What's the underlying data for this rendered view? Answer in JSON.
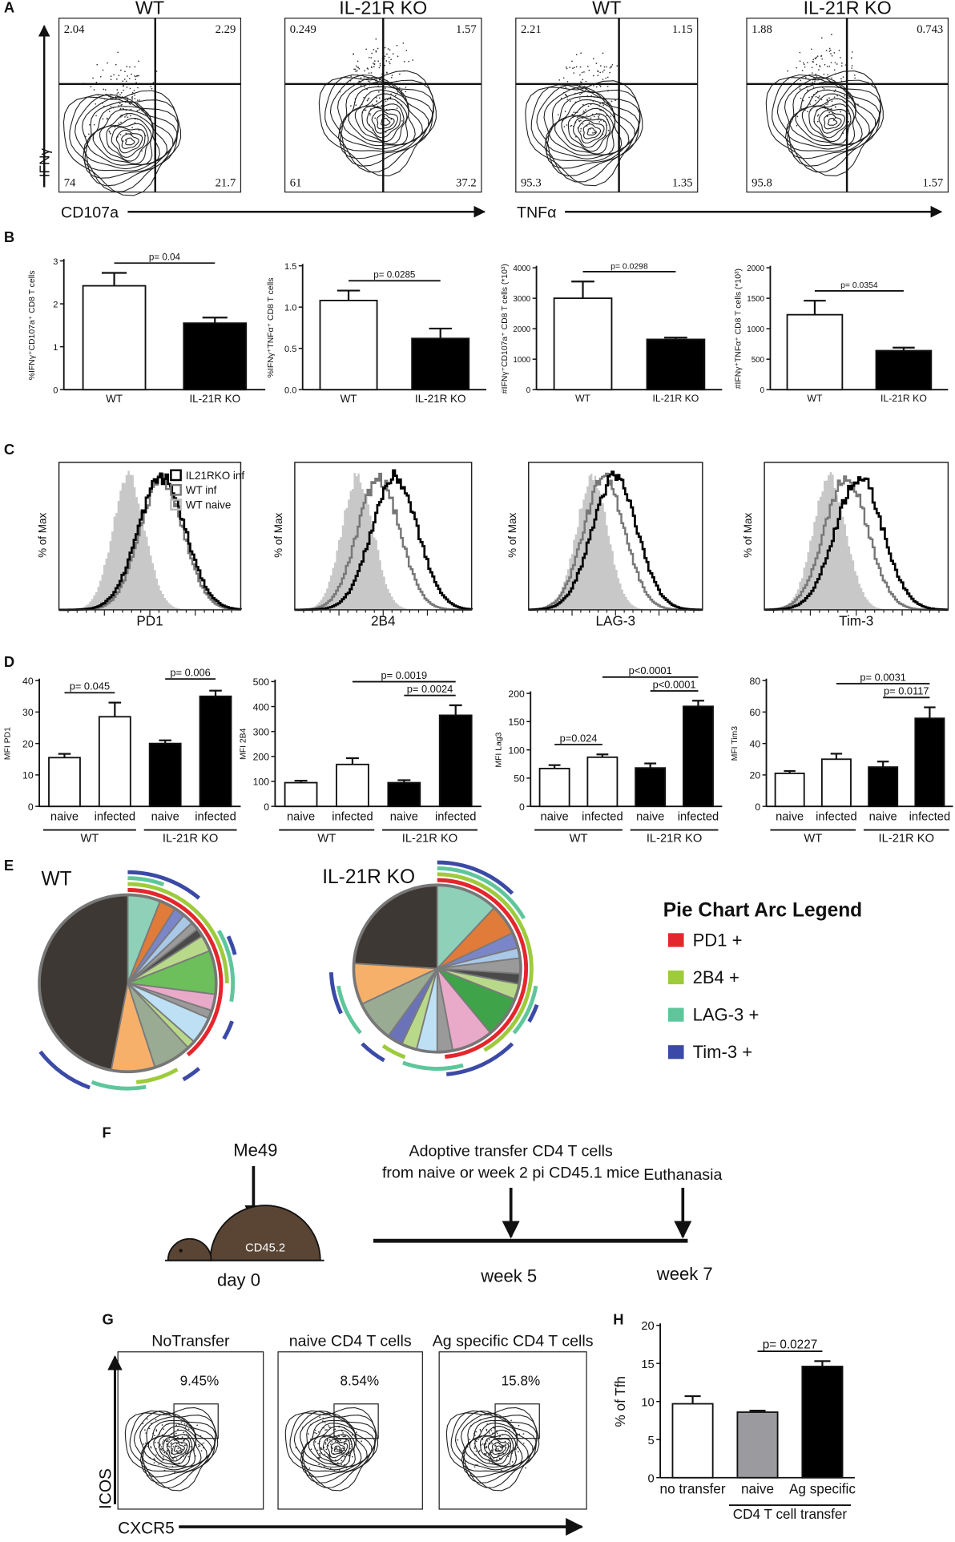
{
  "panel_labels": [
    "A",
    "B",
    "C",
    "D",
    "E",
    "F",
    "G",
    "H"
  ],
  "panel_a": {
    "y_label": "IFNγ",
    "x_labels": [
      "CD107a",
      "TNFα"
    ],
    "plots": [
      {
        "title": "WT",
        "quadrants": [
          2.04,
          2.29,
          74,
          21.7
        ]
      },
      {
        "title": "IL-21R KO",
        "quadrants": [
          0.249,
          1.57,
          61,
          37.2
        ]
      },
      {
        "title": "WT",
        "quadrants": [
          2.21,
          1.15,
          95.3,
          1.35
        ]
      },
      {
        "title": "IL-21R KO",
        "quadrants": [
          1.88,
          0.743,
          95.8,
          1.57
        ]
      }
    ]
  },
  "panel_c": {
    "y_label": "% of Max",
    "legend": [
      "IL21RKO inf",
      "WT inf",
      "WT naive"
    ],
    "x_labels": [
      "PD1",
      "2B4",
      "LAG-3",
      "Tim-3"
    ]
  },
  "panel_e": {
    "legend_title": "Pie Chart Arc Legend",
    "legend": [
      {
        "label": "PD1 +",
        "color": "#e5262d"
      },
      {
        "label": "2B4 +",
        "color": "#9dcb3c"
      },
      {
        "label": "LAG-3 +",
        "color": "#5fc69b"
      },
      {
        "label": "Tim-3 +",
        "color": "#3b4aa6"
      }
    ]
  },
  "panel_f": {
    "strain": "Me49",
    "mouse": "CD45.2",
    "day": "day 0",
    "transfer": [
      "Adoptive transfer CD4 T cells",
      "from naive or week 2 pi CD45.1 mice"
    ],
    "end": "Euthanasia",
    "weeks": [
      "week 5",
      "week 7"
    ]
  },
  "panel_g": {
    "y_label": "ICOS",
    "x_label": "CXCR5",
    "plots": [
      {
        "title": "NoTransfer",
        "percent": "9.45%"
      },
      {
        "title": "naive CD4 T cells",
        "percent": "8.54%"
      },
      {
        "title": "Ag specific CD4 T cells",
        "percent": "15.8%"
      }
    ]
  },
  "chart_data": [
    {
      "type": "bar",
      "y_label": "%IFNγ⁺CD107a⁺ CD8 T cells",
      "categories": [
        "WT",
        "IL-21R KO"
      ],
      "values": [
        2.42,
        1.55
      ],
      "errors": [
        0.3,
        0.13
      ],
      "colors": [
        "#ffffff",
        "#000000"
      ],
      "ylim": [
        0,
        3
      ],
      "yticks": [
        0,
        1,
        2,
        3
      ],
      "comparisons": [
        {
          "label": "p= 0.04",
          "between": [
            0,
            1
          ]
        }
      ]
    },
    {
      "type": "bar",
      "y_label": "%IFNγ⁺TNFα⁺ CD8 T cells",
      "categories": [
        "WT",
        "IL-21R KO"
      ],
      "values": [
        1.08,
        0.62
      ],
      "errors": [
        0.12,
        0.12
      ],
      "colors": [
        "#ffffff",
        "#000000"
      ],
      "ylim": [
        0,
        1.5
      ],
      "yticks": [
        {
          "value": 0,
          "label": "0.0"
        },
        {
          "value": 0.5,
          "label": "0.5"
        },
        {
          "value": 1,
          "label": "1.0"
        },
        {
          "value": 1.5,
          "label": "1.5"
        }
      ],
      "comparisons": [
        {
          "label": "p= 0.0285",
          "between": [
            0,
            1
          ]
        }
      ]
    },
    {
      "type": "bar",
      "y_label": "#IFNγ⁺CD107a⁺ CD8 T cells (*10³)",
      "categories": [
        "WT",
        "IL-21R KO"
      ],
      "values": [
        3000,
        1650
      ],
      "errors": [
        550,
        60
      ],
      "colors": [
        "#ffffff",
        "#000000"
      ],
      "ylim": [
        0,
        4000
      ],
      "yticks": [
        0,
        1000,
        2000,
        3000,
        4000
      ],
      "comparisons": [
        {
          "label": "p= 0.0298",
          "between": [
            0,
            1
          ]
        }
      ]
    },
    {
      "type": "bar",
      "y_label": "#IFNγ⁺TNFα⁺ CD8 T cells (*10³)",
      "categories": [
        "WT",
        "IL-21R KO"
      ],
      "values": [
        1230,
        640
      ],
      "errors": [
        230,
        50
      ],
      "colors": [
        "#ffffff",
        "#000000"
      ],
      "ylim": [
        0,
        2000
      ],
      "yticks": [
        0,
        500,
        1000,
        1500,
        2000
      ],
      "comparisons": [
        {
          "label": "p= 0.0354",
          "between": [
            0,
            1
          ]
        }
      ]
    },
    {
      "type": "bar",
      "y_label": "MFI PD1",
      "categories": [
        "naive",
        "infected",
        "naive",
        "infected"
      ],
      "values": [
        15.5,
        28.5,
        20,
        35
      ],
      "errors": [
        1.2,
        4.5,
        1,
        1.8
      ],
      "colors": [
        "#ffffff",
        "#ffffff",
        "#000000",
        "#000000"
      ],
      "ylim": [
        0,
        40
      ],
      "yticks": [
        0,
        10,
        20,
        30,
        40
      ],
      "groups": [
        {
          "label": "WT",
          "between": [
            0,
            1
          ]
        },
        {
          "label": "IL-21R KO",
          "between": [
            2,
            3
          ]
        }
      ],
      "comparisons": [
        {
          "label": "p= 0.045",
          "between": [
            0,
            1
          ]
        },
        {
          "label": "p= 0.006",
          "between": [
            2,
            3
          ]
        }
      ]
    },
    {
      "type": "bar",
      "y_label": "MFI 2B4",
      "categories": [
        "naive",
        "infected",
        "naive",
        "infected"
      ],
      "values": [
        95,
        168,
        95,
        365
      ],
      "errors": [
        8,
        25,
        10,
        40
      ],
      "colors": [
        "#ffffff",
        "#ffffff",
        "#000000",
        "#000000"
      ],
      "ylim": [
        0,
        500
      ],
      "yticks": [
        0,
        100,
        200,
        300,
        400,
        500
      ],
      "groups": [
        {
          "label": "WT",
          "between": [
            0,
            1
          ]
        },
        {
          "label": "IL-21R KO",
          "between": [
            2,
            3
          ]
        }
      ],
      "comparisons": [
        {
          "label": "p= 0.0024",
          "between": [
            2,
            3
          ]
        },
        {
          "label": "p= 0.0019",
          "between": [
            1,
            3
          ]
        }
      ]
    },
    {
      "type": "bar",
      "y_label": "MFI Lag3",
      "categories": [
        "naive",
        "infected",
        "naive",
        "infected"
      ],
      "values": [
        67,
        87,
        68,
        177
      ],
      "errors": [
        6,
        5,
        8,
        10
      ],
      "colors": [
        "#ffffff",
        "#ffffff",
        "#000000",
        "#000000"
      ],
      "ylim": [
        0,
        200
      ],
      "yticks": [
        0,
        50,
        100,
        150,
        200
      ],
      "groups": [
        {
          "label": "WT",
          "between": [
            0,
            1
          ]
        },
        {
          "label": "IL-21R KO",
          "between": [
            2,
            3
          ]
        }
      ],
      "comparisons": [
        {
          "label": "p=0.024",
          "between": [
            0,
            1
          ]
        },
        {
          "label": "p<0.0001",
          "between": [
            2,
            3
          ]
        },
        {
          "label": "p<0.0001",
          "between": [
            1,
            3
          ]
        }
      ]
    },
    {
      "type": "bar",
      "y_label": "MFI Tim3",
      "categories": [
        "naive",
        "infected",
        "naive",
        "infected"
      ],
      "values": [
        21,
        30,
        25,
        56
      ],
      "errors": [
        1.5,
        3.5,
        3.5,
        7
      ],
      "colors": [
        "#ffffff",
        "#ffffff",
        "#000000",
        "#000000"
      ],
      "ylim": [
        0,
        80
      ],
      "yticks": [
        0,
        20,
        40,
        60,
        80
      ],
      "groups": [
        {
          "label": "WT",
          "between": [
            0,
            1
          ]
        },
        {
          "label": "IL-21R KO",
          "between": [
            2,
            3
          ]
        }
      ],
      "comparisons": [
        {
          "label": "p= 0.0117",
          "between": [
            2,
            3
          ]
        },
        {
          "label": "p= 0.0031",
          "between": [
            1,
            3
          ]
        }
      ]
    },
    {
      "type": "bar",
      "y_label": "% of Tfh",
      "categories": [
        "no transfer",
        "naive",
        "Ag specific"
      ],
      "values": [
        9.7,
        8.6,
        14.6
      ],
      "errors": [
        1,
        0.2,
        0.7
      ],
      "colors": [
        "#ffffff",
        "#9a9a9f",
        "#000000"
      ],
      "ylim": [
        0,
        20
      ],
      "yticks": [
        0,
        5,
        10,
        15,
        20
      ],
      "groups": [
        {
          "label": "CD4 T cell transfer",
          "between": [
            1,
            2
          ]
        }
      ],
      "comparisons": [
        {
          "label": "p= 0.0227",
          "between": [
            1,
            2
          ]
        }
      ]
    },
    {
      "type": "pie",
      "title": "WT",
      "values": [
        6,
        3,
        2,
        2,
        1.5,
        1.5,
        3,
        8,
        3,
        1.5,
        5,
        1.5,
        7,
        8,
        47
      ],
      "colors": [
        "#8fd0b9",
        "#e07b39",
        "#7b86c8",
        "#a9c8e8",
        "#9a9a9a",
        "#4a4a4a",
        "#b9d98a",
        "#6cbf5a",
        "#e9a9c9",
        "#9a9a9a",
        "#bde0f5",
        "#b9d98a",
        "#9aab94",
        "#f7b06a",
        "#3d3833"
      ]
    },
    {
      "type": "pie",
      "title": "IL-21R KO",
      "values": [
        12,
        6,
        3,
        2,
        3,
        2,
        3,
        8,
        8,
        3,
        4,
        3,
        3,
        8,
        8,
        24
      ],
      "colors": [
        "#8fd0b9",
        "#e07b39",
        "#7b86c8",
        "#a9c8e8",
        "#9a9a9a",
        "#4a4a4a",
        "#b9d98a",
        "#3fa34a",
        "#e9a9c9",
        "#9a9a9a",
        "#bde0f5",
        "#b9d98a",
        "#6b73b8",
        "#9aab94",
        "#f7b06a",
        "#3d3833"
      ]
    }
  ]
}
